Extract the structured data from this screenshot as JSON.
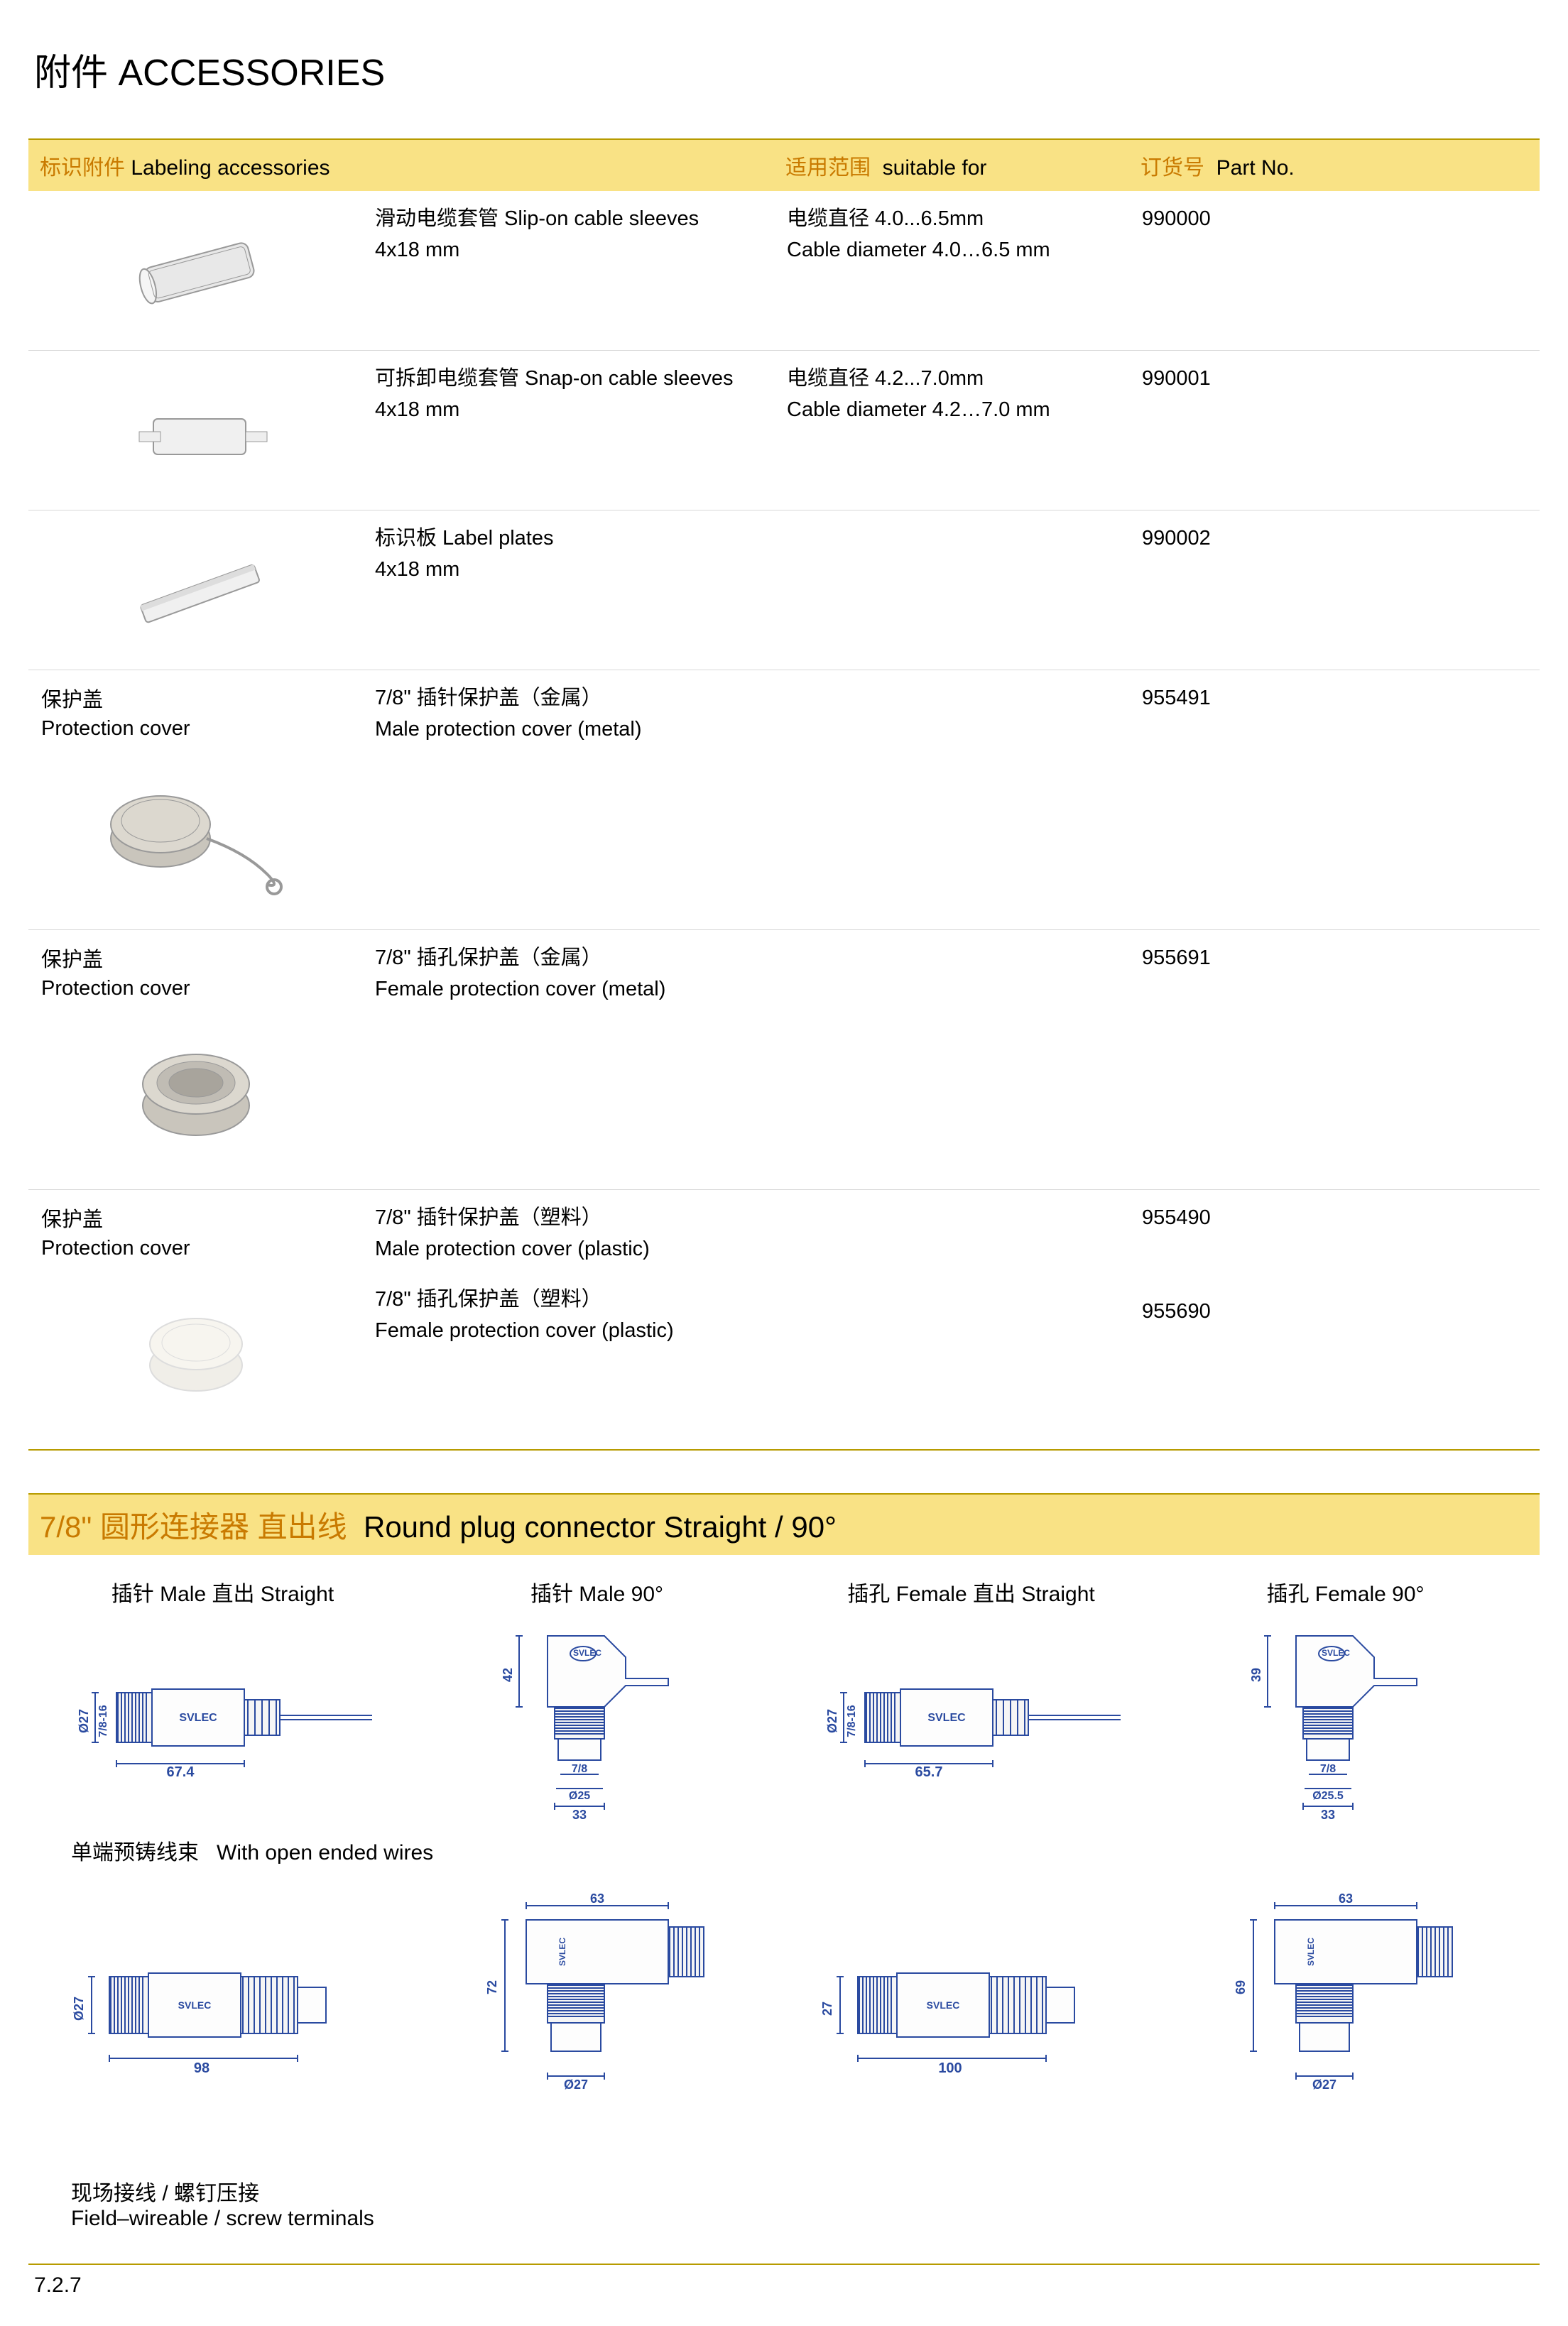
{
  "title_cn": "附件",
  "title_en": "ACCESSORIES",
  "headers": {
    "col1_cn": "标识附件",
    "col1_en": "Labeling accessories",
    "col3_cn": "适用范围",
    "col3_en": "suitable for",
    "col4_cn": "订货号",
    "col4_en": "Part No."
  },
  "rows": [
    {
      "label_cn": "",
      "label_en": "",
      "desc_cn": "滑动电缆套管 Slip-on cable sleeves",
      "desc_sub": "4x18 mm",
      "suitable_cn": "电缆直径 4.0...6.5mm",
      "suitable_en": "Cable diameter 4.0…6.5 mm",
      "partno": "990000",
      "img": "sleeve1"
    },
    {
      "label_cn": "",
      "label_en": "",
      "desc_cn": "可拆卸电缆套管  Snap-on cable sleeves",
      "desc_sub": "4x18 mm",
      "suitable_cn": "电缆直径 4.2...7.0mm",
      "suitable_en": "Cable diameter 4.2…7.0 mm",
      "partno": "990001",
      "img": "sleeve2"
    },
    {
      "label_cn": "",
      "label_en": "",
      "desc_cn": "标识板  Label plates",
      "desc_sub": "4x18 mm",
      "suitable_cn": "",
      "suitable_en": "",
      "partno": "990002",
      "img": "plate"
    },
    {
      "label_cn": "保护盖",
      "label_en": "Protection cover",
      "desc_cn": "7/8\" 插针保护盖（金属）",
      "desc_sub": "Male protection cover (metal)",
      "suitable_cn": "",
      "suitable_en": "",
      "partno": "955491",
      "img": "capchain",
      "tall": true
    },
    {
      "label_cn": "保护盖",
      "label_en": "Protection cover",
      "desc_cn": "7/8\" 插孔保护盖（金属）",
      "desc_sub": "Female protection cover (metal)",
      "suitable_cn": "",
      "suitable_en": "",
      "partno": "955691",
      "img": "capmetal",
      "tall": true
    },
    {
      "label_cn": "保护盖",
      "label_en": "Protection cover",
      "desc_cn": "7/8\" 插针保护盖（塑料）",
      "desc_sub": "Male protection cover (plastic)",
      "desc2_cn": "7/8\" 插孔保护盖（塑料）",
      "desc2_sub": "Female protection cover (plastic)",
      "suitable_cn": "",
      "suitable_en": "",
      "partno": "955490",
      "partno2": "955690",
      "img": "capplastic",
      "tall": true
    }
  ],
  "section2_title_cn": "7/8\" 圆形连接器  直出线",
  "section2_title_en": "Round plug connector  Straight / 90°",
  "diagrams_top": [
    {
      "label": "插针 Male   直出 Straight",
      "type": "male_straight"
    },
    {
      "label": "插针 Male   90°",
      "type": "male_90"
    },
    {
      "label": "插孔 Female   直出 Straight",
      "type": "female_straight"
    },
    {
      "label": "插孔 Female   90°",
      "type": "female_90"
    }
  ],
  "subtitle_open_cn": "单端预铸线束",
  "subtitle_open_en": "With open ended wires",
  "diagrams_bottom": [
    {
      "type": "b1",
      "len": "98",
      "dia": "Ø27"
    },
    {
      "type": "b2",
      "len": "63",
      "h": "72",
      "dia": "Ø27"
    },
    {
      "type": "b3",
      "len": "100",
      "dia": "27"
    },
    {
      "type": "b4",
      "len": "63",
      "h": "69",
      "dia": "Ø27"
    }
  ],
  "subtitle_field_cn": "现场接线 / 螺钉压接",
  "subtitle_field_en": "Field–wireable / screw terminals",
  "dims": {
    "male_straight": {
      "len": "67.4",
      "dia": "Ø27",
      "thread": "7/8-16"
    },
    "male_90": {
      "h": "42",
      "w": "33",
      "d1": "7/8",
      "d2": "Ø25"
    },
    "female_straight": {
      "len": "65.7",
      "dia": "Ø27",
      "thread": "7/8-16"
    },
    "female_90": {
      "h": "39",
      "w": "33",
      "d1": "7/8",
      "d2": "Ø25.5"
    }
  },
  "brand": "SVLEC",
  "page_number": "7.2.7",
  "colors": {
    "accent": "#b79b00",
    "header_bg": "#f9e285",
    "orange_text": "#c97a00",
    "draw_blue": "#2a4aa0"
  }
}
